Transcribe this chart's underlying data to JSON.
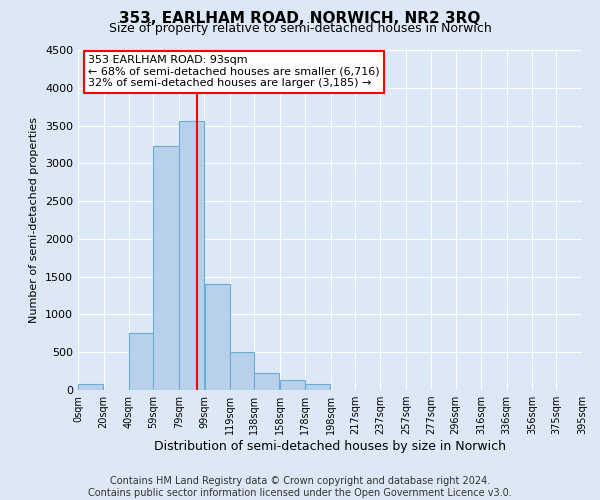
{
  "title": "353, EARLHAM ROAD, NORWICH, NR2 3RQ",
  "subtitle": "Size of property relative to semi-detached houses in Norwich",
  "xlabel": "Distribution of semi-detached houses by size in Norwich",
  "ylabel": "Number of semi-detached properties",
  "bar_left_edges": [
    0,
    20,
    40,
    59,
    79,
    99,
    119,
    138,
    158,
    178,
    198,
    217,
    237,
    257,
    277,
    296,
    316,
    336,
    356,
    375
  ],
  "bar_widths": [
    20,
    20,
    19,
    20,
    20,
    20,
    19,
    20,
    20,
    20,
    19,
    20,
    20,
    20,
    19,
    20,
    20,
    20,
    19,
    20
  ],
  "bar_heights": [
    75,
    0,
    760,
    3230,
    3560,
    1400,
    500,
    230,
    130,
    80,
    0,
    0,
    0,
    0,
    0,
    0,
    0,
    0,
    0,
    0
  ],
  "bar_color": "#b8d0eb",
  "bar_edge_color": "#6aaed6",
  "vline_x": 93,
  "vline_color": "red",
  "ylim": [
    0,
    4500
  ],
  "xlim": [
    0,
    395
  ],
  "yticks": [
    0,
    500,
    1000,
    1500,
    2000,
    2500,
    3000,
    3500,
    4000,
    4500
  ],
  "xtick_labels": [
    "0sqm",
    "20sqm",
    "40sqm",
    "59sqm",
    "79sqm",
    "99sqm",
    "119sqm",
    "138sqm",
    "158sqm",
    "178sqm",
    "198sqm",
    "217sqm",
    "237sqm",
    "257sqm",
    "277sqm",
    "296sqm",
    "316sqm",
    "336sqm",
    "356sqm",
    "375sqm",
    "395sqm"
  ],
  "xtick_positions": [
    0,
    20,
    40,
    59,
    79,
    99,
    119,
    138,
    158,
    178,
    198,
    217,
    237,
    257,
    277,
    296,
    316,
    336,
    356,
    375,
    395
  ],
  "annotation_title": "353 EARLHAM ROAD: 93sqm",
  "annotation_line1": "← 68% of semi-detached houses are smaller (6,716)",
  "annotation_line2": "32% of semi-detached houses are larger (3,185) →",
  "annotation_box_color": "white",
  "annotation_box_edge_color": "red",
  "footer_line1": "Contains HM Land Registry data © Crown copyright and database right 2024.",
  "footer_line2": "Contains public sector information licensed under the Open Government Licence v3.0.",
  "background_color": "#dce8f5",
  "axes_background_color": "#dce8f5",
  "grid_color": "white",
  "title_fontsize": 11,
  "subtitle_fontsize": 9,
  "ann_title_fontsize": 8.5,
  "ann_body_fontsize": 8,
  "ylabel_fontsize": 8,
  "xlabel_fontsize": 9,
  "footer_fontsize": 7,
  "ytick_fontsize": 8,
  "xtick_fontsize": 7
}
